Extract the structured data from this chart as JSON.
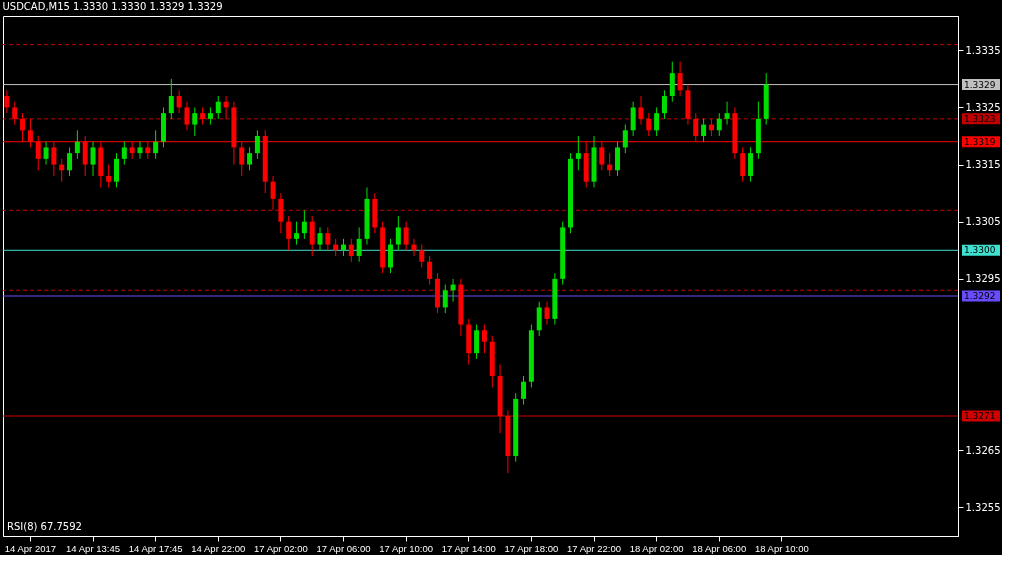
{
  "chart_data": {
    "type": "candlestick",
    "title": "USDCAD,M15  1.3330 1.3330 1.3329 1.3329",
    "categories": [
      null,
      null,
      null,
      "14 Apr 2017",
      null,
      null,
      null,
      null,
      null,
      null,
      null,
      "14 Apr 13:45",
      null,
      null,
      null,
      null,
      null,
      null,
      null,
      "14 Apr 17:45",
      null,
      null,
      null,
      null,
      null,
      null,
      null,
      "14 Apr 22:00",
      null,
      null,
      null,
      null,
      null,
      null,
      null,
      "17 Apr 02:00",
      null,
      null,
      null,
      null,
      null,
      null,
      null,
      "17 Apr 06:00",
      null,
      null,
      null,
      null,
      null,
      null,
      null,
      "17 Apr 10:00",
      null,
      null,
      null,
      null,
      null,
      null,
      null,
      "17 Apr 14:00",
      null,
      null,
      null,
      null,
      null,
      null,
      null,
      "17 Apr 18:00",
      null,
      null,
      null,
      null,
      null,
      null,
      null,
      "17 Apr 22:00",
      null,
      null,
      null,
      null,
      null,
      null,
      null,
      "18 Apr 02:00",
      null,
      null,
      null,
      null,
      null,
      null,
      null,
      "18 Apr 06:00",
      null,
      null,
      null,
      null,
      null,
      null,
      null,
      "18 Apr 10:00",
      null,
      null,
      null,
      null,
      null,
      null,
      null,
      null,
      null,
      null,
      null,
      null,
      null,
      null,
      null,
      null,
      null,
      null,
      null,
      null,
      null,
      null
    ],
    "ohlc": [
      [
        1.3327,
        1.3328,
        1.3324,
        1.3325
      ],
      [
        1.3325,
        1.3326,
        1.3322,
        1.3323
      ],
      [
        1.3323,
        1.3324,
        1.3319,
        1.3321
      ],
      [
        1.3321,
        1.3323,
        1.3318,
        1.3319
      ],
      [
        1.3319,
        1.332,
        1.3314,
        1.3316
      ],
      [
        1.3316,
        1.3319,
        1.3315,
        1.3318
      ],
      [
        1.3318,
        1.3319,
        1.3313,
        1.3315
      ],
      [
        1.3315,
        1.3316,
        1.3312,
        1.3314
      ],
      [
        1.3314,
        1.3318,
        1.3313,
        1.3317
      ],
      [
        1.3317,
        1.3321,
        1.3316,
        1.3319
      ],
      [
        1.3319,
        1.332,
        1.3313,
        1.3315
      ],
      [
        1.3315,
        1.3319,
        1.3313,
        1.3318
      ],
      [
        1.3318,
        1.3319,
        1.3311,
        1.3313
      ],
      [
        1.3313,
        1.3315,
        1.3311,
        1.3312
      ],
      [
        1.3312,
        1.3317,
        1.3311,
        1.3316
      ],
      [
        1.3316,
        1.3319,
        1.3315,
        1.3318
      ],
      [
        1.3318,
        1.3319,
        1.3316,
        1.3317
      ],
      [
        1.3317,
        1.3319,
        1.3316,
        1.3318
      ],
      [
        1.3318,
        1.3319,
        1.3316,
        1.3317
      ],
      [
        1.3317,
        1.3321,
        1.3316,
        1.3319
      ],
      [
        1.3319,
        1.3325,
        1.3318,
        1.3324
      ],
      [
        1.3324,
        1.333,
        1.3323,
        1.3327
      ],
      [
        1.3327,
        1.3328,
        1.3324,
        1.3325
      ],
      [
        1.3325,
        1.3326,
        1.3321,
        1.3322
      ],
      [
        1.3322,
        1.3325,
        1.332,
        1.3324
      ],
      [
        1.3324,
        1.3325,
        1.3322,
        1.3323
      ],
      [
        1.3323,
        1.3325,
        1.3322,
        1.3324
      ],
      [
        1.3324,
        1.3327,
        1.3323,
        1.3326
      ],
      [
        1.3326,
        1.3327,
        1.3323,
        1.3325
      ],
      [
        1.3325,
        1.3326,
        1.3315,
        1.3318
      ],
      [
        1.3318,
        1.3319,
        1.3313,
        1.3315
      ],
      [
        1.3315,
        1.3318,
        1.3314,
        1.3317
      ],
      [
        1.3317,
        1.3321,
        1.3316,
        1.332
      ],
      [
        1.332,
        1.3321,
        1.331,
        1.3312
      ],
      [
        1.3312,
        1.3313,
        1.3307,
        1.3309
      ],
      [
        1.3309,
        1.331,
        1.3303,
        1.3305
      ],
      [
        1.3305,
        1.3306,
        1.33,
        1.3302
      ],
      [
        1.3302,
        1.3305,
        1.3301,
        1.3303
      ],
      [
        1.3303,
        1.3307,
        1.3302,
        1.3305
      ],
      [
        1.3305,
        1.3306,
        1.3299,
        1.3301
      ],
      [
        1.3301,
        1.3304,
        1.33,
        1.3303
      ],
      [
        1.3303,
        1.3304,
        1.33,
        1.3301
      ],
      [
        1.3301,
        1.3302,
        1.3299,
        1.33
      ],
      [
        1.33,
        1.3302,
        1.3299,
        1.3301
      ],
      [
        1.3301,
        1.3302,
        1.3298,
        1.3299
      ],
      [
        1.3299,
        1.3304,
        1.3298,
        1.3302
      ],
      [
        1.3302,
        1.3311,
        1.3301,
        1.3309
      ],
      [
        1.3309,
        1.331,
        1.3303,
        1.3304
      ],
      [
        1.3304,
        1.3305,
        1.3296,
        1.3297
      ],
      [
        1.3297,
        1.3302,
        1.3296,
        1.3301
      ],
      [
        1.3301,
        1.3306,
        1.33,
        1.3304
      ],
      [
        1.3304,
        1.3305,
        1.33,
        1.3301
      ],
      [
        1.3301,
        1.3302,
        1.3299,
        1.33
      ],
      [
        1.33,
        1.3301,
        1.3297,
        1.3298
      ],
      [
        1.3298,
        1.3299,
        1.3294,
        1.3295
      ],
      [
        1.3295,
        1.3296,
        1.3289,
        1.329
      ],
      [
        1.329,
        1.3294,
        1.3289,
        1.3293
      ],
      [
        1.3293,
        1.3295,
        1.3291,
        1.3294
      ],
      [
        1.3294,
        1.3295,
        1.3285,
        1.3287
      ],
      [
        1.3287,
        1.3288,
        1.328,
        1.3282
      ],
      [
        1.3282,
        1.3287,
        1.3281,
        1.3286
      ],
      [
        1.3286,
        1.3287,
        1.3282,
        1.3284
      ],
      [
        1.3284,
        1.3285,
        1.3276,
        1.3278
      ],
      [
        1.3278,
        1.328,
        1.3268,
        1.3271
      ],
      [
        1.3271,
        1.3272,
        1.3261,
        1.3264
      ],
      [
        1.3264,
        1.3275,
        1.3263,
        1.3274
      ],
      [
        1.3274,
        1.3278,
        1.3273,
        1.3277
      ],
      [
        1.3277,
        1.3287,
        1.3276,
        1.3286
      ],
      [
        1.3286,
        1.3291,
        1.3285,
        1.329
      ],
      [
        1.329,
        1.3291,
        1.3287,
        1.3288
      ],
      [
        1.3288,
        1.3296,
        1.3287,
        1.3295
      ],
      [
        1.3295,
        1.3305,
        1.3294,
        1.3304
      ],
      [
        1.3304,
        1.3317,
        1.3303,
        1.3316
      ],
      [
        1.3316,
        1.332,
        1.3314,
        1.3317
      ],
      [
        1.3317,
        1.3319,
        1.3311,
        1.3312
      ],
      [
        1.3312,
        1.332,
        1.3311,
        1.3318
      ],
      [
        1.3318,
        1.3319,
        1.3314,
        1.3315
      ],
      [
        1.3315,
        1.3317,
        1.3313,
        1.3314
      ],
      [
        1.3314,
        1.3319,
        1.3313,
        1.3318
      ],
      [
        1.3318,
        1.3322,
        1.3317,
        1.3321
      ],
      [
        1.3321,
        1.3326,
        1.332,
        1.3325
      ],
      [
        1.3325,
        1.3327,
        1.3322,
        1.3323
      ],
      [
        1.3323,
        1.3324,
        1.332,
        1.3321
      ],
      [
        1.3321,
        1.3325,
        1.332,
        1.3324
      ],
      [
        1.3324,
        1.3328,
        1.3323,
        1.3327
      ],
      [
        1.3327,
        1.3333,
        1.3326,
        1.3331
      ],
      [
        1.3331,
        1.3333,
        1.3327,
        1.3328
      ],
      [
        1.3328,
        1.3329,
        1.3322,
        1.3323
      ],
      [
        1.3323,
        1.3324,
        1.3319,
        1.332
      ],
      [
        1.332,
        1.3323,
        1.3319,
        1.3322
      ],
      [
        1.3322,
        1.3323,
        1.332,
        1.3321
      ],
      [
        1.3321,
        1.3324,
        1.332,
        1.3323
      ],
      [
        1.3323,
        1.3326,
        1.3322,
        1.3324
      ],
      [
        1.3324,
        1.3325,
        1.3316,
        1.3317
      ],
      [
        1.3317,
        1.3318,
        1.3312,
        1.3313
      ],
      [
        1.3313,
        1.3318,
        1.3312,
        1.3317
      ],
      [
        1.3317,
        1.3326,
        1.3316,
        1.3323
      ],
      [
        1.3323,
        1.3331,
        1.3322,
        1.3329
      ],
      null,
      null,
      null,
      null,
      null,
      null,
      null,
      null,
      null,
      null,
      null,
      null,
      null,
      null,
      null,
      null,
      null,
      null,
      null,
      null,
      null,
      null,
      null,
      null
    ],
    "ylim": [
      1.325,
      1.3341
    ],
    "yticks": [
      1.3255,
      1.3265,
      1.3295,
      1.3305,
      1.3315,
      1.3325,
      1.3335
    ],
    "ref_lines": [
      {
        "axis": "y",
        "value": 1.3336,
        "color": "#c00000",
        "line_style": "dashed"
      },
      {
        "axis": "y",
        "value": 1.3329,
        "label": "1.3329",
        "color": "#c0c0c0",
        "line_style": "solid"
      },
      {
        "axis": "y",
        "value": 1.3323,
        "label": "1.3323",
        "color": "#c00000",
        "line_style": "dashed"
      },
      {
        "axis": "y",
        "value": 1.3319,
        "label": "1.3319",
        "color": "#ff0000",
        "line_style": "solid"
      },
      {
        "axis": "y",
        "value": 1.3307,
        "color": "#c00000",
        "line_style": "dashed"
      },
      {
        "axis": "y",
        "value": 1.33,
        "label": "1.3300",
        "color": "#40e0d0",
        "line_style": "solid"
      },
      {
        "axis": "y",
        "value": 1.3293,
        "color": "#c00000",
        "line_style": "dashed"
      },
      {
        "axis": "y",
        "value": 1.3292,
        "label": "1.3292",
        "color": "#6a4cff",
        "line_style": "solid"
      },
      {
        "axis": "y",
        "value": 1.3271,
        "label": "1.3271",
        "color": "#d00000",
        "line_style": "solid"
      }
    ],
    "annotations": [
      "RSI(8) 67.7592"
    ]
  }
}
